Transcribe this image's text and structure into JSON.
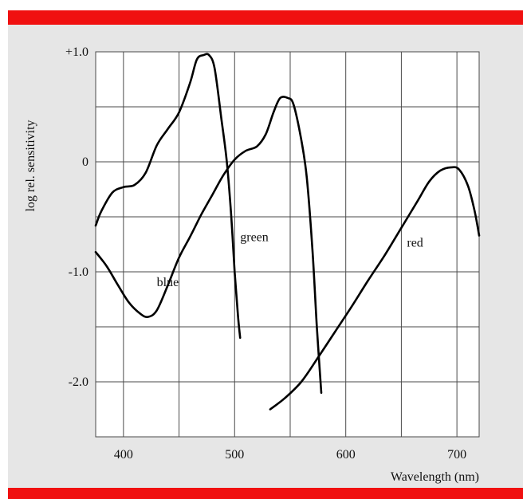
{
  "colors": {
    "accent_bar": "#f01010",
    "panel_bg": "#e6e6e6",
    "plot_bg": "#ffffff",
    "line": "#000000",
    "grid": "#4a4a4a"
  },
  "chart_data": {
    "type": "line",
    "xlabel": "Wavelength (nm)",
    "ylabel": "log rel. sensitivity",
    "xlim": [
      375,
      720
    ],
    "ylim": [
      -2.5,
      1.0
    ],
    "x_ticks": [
      400,
      500,
      600,
      700
    ],
    "x_tick_labels": [
      "400",
      "500",
      "600",
      "700"
    ],
    "y_ticks": [
      1.0,
      0,
      -1.0,
      -2.0
    ],
    "y_tick_labels": [
      "+1.0",
      "0",
      "-1.0",
      "-2.0"
    ],
    "grid": true,
    "series": [
      {
        "name": "blue",
        "points": [
          [
            375,
            -0.58
          ],
          [
            380,
            -0.45
          ],
          [
            390,
            -0.28
          ],
          [
            400,
            -0.23
          ],
          [
            410,
            -0.21
          ],
          [
            420,
            -0.1
          ],
          [
            430,
            0.15
          ],
          [
            440,
            0.3
          ],
          [
            450,
            0.45
          ],
          [
            460,
            0.72
          ],
          [
            466,
            0.93
          ],
          [
            472,
            0.97
          ],
          [
            477,
            0.97
          ],
          [
            482,
            0.85
          ],
          [
            488,
            0.4
          ],
          [
            493,
            0.0
          ],
          [
            497,
            -0.5
          ],
          [
            500,
            -1.0
          ],
          [
            503,
            -1.4
          ],
          [
            505,
            -1.6
          ]
        ]
      },
      {
        "name": "green",
        "points": [
          [
            375,
            -0.82
          ],
          [
            385,
            -0.95
          ],
          [
            395,
            -1.12
          ],
          [
            405,
            -1.28
          ],
          [
            415,
            -1.38
          ],
          [
            422,
            -1.41
          ],
          [
            430,
            -1.35
          ],
          [
            440,
            -1.12
          ],
          [
            450,
            -0.87
          ],
          [
            460,
            -0.68
          ],
          [
            470,
            -0.48
          ],
          [
            480,
            -0.3
          ],
          [
            490,
            -0.12
          ],
          [
            500,
            0.02
          ],
          [
            510,
            0.1
          ],
          [
            520,
            0.14
          ],
          [
            528,
            0.25
          ],
          [
            535,
            0.45
          ],
          [
            541,
            0.58
          ],
          [
            548,
            0.58
          ],
          [
            553,
            0.52
          ],
          [
            560,
            0.2
          ],
          [
            565,
            -0.15
          ],
          [
            570,
            -0.8
          ],
          [
            574,
            -1.5
          ],
          [
            578,
            -2.1
          ]
        ]
      },
      {
        "name": "red",
        "points": [
          [
            532,
            -2.25
          ],
          [
            545,
            -2.15
          ],
          [
            560,
            -2.0
          ],
          [
            575,
            -1.78
          ],
          [
            590,
            -1.55
          ],
          [
            605,
            -1.32
          ],
          [
            620,
            -1.08
          ],
          [
            635,
            -0.85
          ],
          [
            650,
            -0.6
          ],
          [
            665,
            -0.35
          ],
          [
            675,
            -0.18
          ],
          [
            685,
            -0.08
          ],
          [
            695,
            -0.05
          ],
          [
            702,
            -0.07
          ],
          [
            710,
            -0.22
          ],
          [
            716,
            -0.45
          ],
          [
            720,
            -0.67
          ]
        ]
      }
    ]
  }
}
